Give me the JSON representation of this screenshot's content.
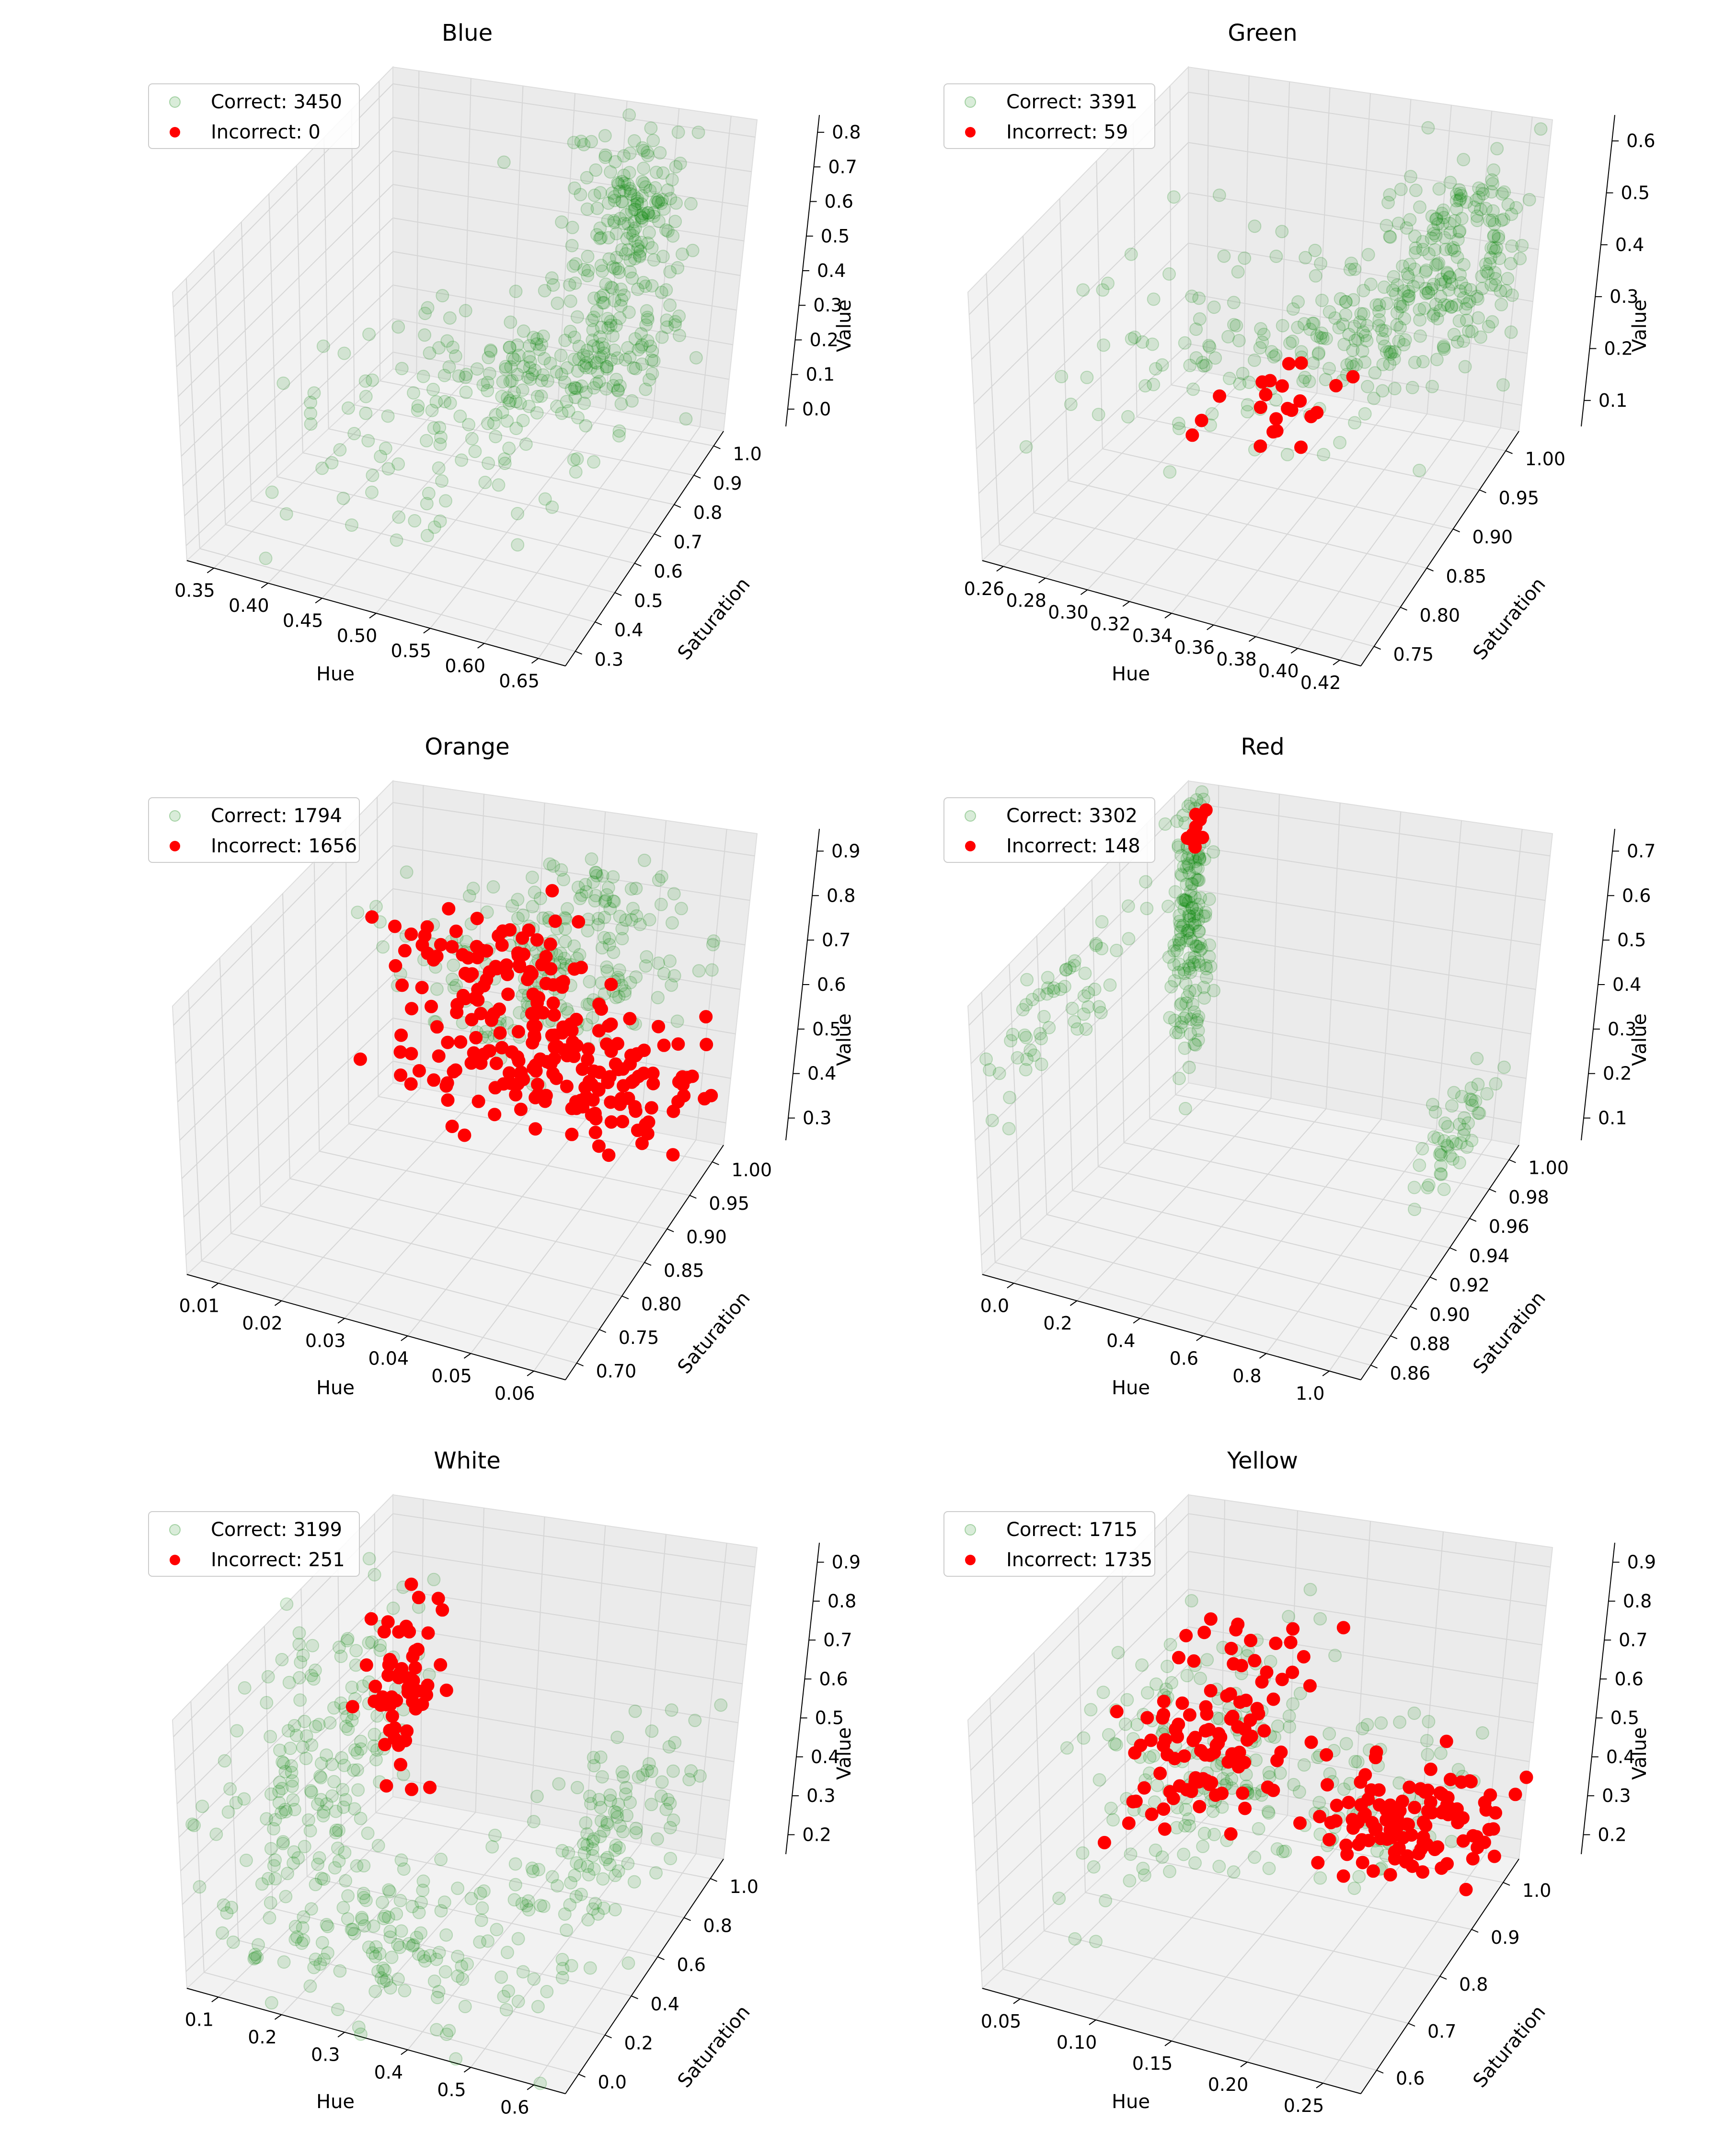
{
  "figure_title": "",
  "colors": {
    "correct": "#008000",
    "incorrect": "#ff0000",
    "pane": "#f2f2f2",
    "grid": "#d6d6d6"
  },
  "chart_data": [
    {
      "type": "scatter3d",
      "title": "Blue",
      "xlabel": "Hue",
      "ylabel": "Saturation",
      "zlabel": "Value",
      "xlim": [
        0.34,
        0.67
      ],
      "ylim": [
        0.2,
        1.05
      ],
      "zlim": [
        -0.05,
        0.85
      ],
      "xticks": [
        "0.35",
        "0.40",
        "0.45",
        "0.50",
        "0.55",
        "0.60",
        "0.65"
      ],
      "yticks": [
        "0.3",
        "0.4",
        "0.5",
        "0.6",
        "0.7",
        "0.8",
        "0.9",
        "1.0"
      ],
      "zticks": [
        "0.0",
        "0.1",
        "0.2",
        "0.3",
        "0.4",
        "0.5",
        "0.6",
        "0.7",
        "0.8"
      ],
      "legend": {
        "position": "upper left",
        "correct": "Correct: 3450",
        "incorrect": "Incorrect: 0"
      },
      "series": [
        {
          "name": "Correct: 3450",
          "clusters": [
            {
              "center": [
                0.58,
                0.95,
                0.45
              ],
              "spread": [
                0.03,
                0.04,
                0.22
              ],
              "n": 180
            },
            {
              "center": [
                0.52,
                0.85,
                0.22
              ],
              "spread": [
                0.05,
                0.08,
                0.08
              ],
              "n": 120
            },
            {
              "center": [
                0.45,
                0.7,
                0.1
              ],
              "spread": [
                0.07,
                0.15,
                0.08
              ],
              "n": 90
            },
            {
              "center": [
                0.6,
                0.9,
                0.7
              ],
              "spread": [
                0.02,
                0.04,
                0.1
              ],
              "n": 60
            }
          ]
        },
        {
          "name": "Incorrect: 0",
          "clusters": []
        }
      ]
    },
    {
      "type": "scatter3d",
      "title": "Green",
      "xlabel": "Hue",
      "ylabel": "Saturation",
      "zlabel": "Value",
      "xlim": [
        0.255,
        0.425
      ],
      "ylim": [
        0.72,
        1.03
      ],
      "zlim": [
        0.02,
        0.66
      ],
      "xticks": [
        "0.26",
        "0.28",
        "0.30",
        "0.32",
        "0.34",
        "0.36",
        "0.38",
        "0.40",
        "0.42"
      ],
      "yticks": [
        "0.75",
        "0.80",
        "0.85",
        "0.90",
        "0.95",
        "1.00"
      ],
      "zticks": [
        "0.1",
        "0.2",
        "0.3",
        "0.4",
        "0.5",
        "0.6"
      ],
      "legend": {
        "position": "upper left",
        "correct": "Correct: 3391",
        "incorrect": "Incorrect: 59"
      },
      "series": [
        {
          "name": "Correct: 3391",
          "clusters": [
            {
              "center": [
                0.4,
                0.97,
                0.45
              ],
              "spread": [
                0.015,
                0.03,
                0.1
              ],
              "n": 200
            },
            {
              "center": [
                0.36,
                0.95,
                0.28
              ],
              "spread": [
                0.02,
                0.04,
                0.05
              ],
              "n": 110
            },
            {
              "center": [
                0.3,
                0.9,
                0.3
              ],
              "spread": [
                0.03,
                0.06,
                0.08
              ],
              "n": 70
            }
          ]
        },
        {
          "name": "Incorrect: 59",
          "clusters": [
            {
              "center": [
                0.33,
                0.96,
                0.08
              ],
              "spread": [
                0.015,
                0.03,
                0.03
              ],
              "n": 22
            }
          ]
        }
      ]
    },
    {
      "type": "scatter3d",
      "title": "Orange",
      "xlabel": "Hue",
      "ylabel": "Saturation",
      "zlabel": "Value",
      "xlim": [
        0.008,
        0.065
      ],
      "ylim": [
        0.67,
        1.03
      ],
      "zlim": [
        0.22,
        0.97
      ],
      "xticks": [
        "0.01",
        "0.02",
        "0.03",
        "0.04",
        "0.05",
        "0.06"
      ],
      "yticks": [
        "0.70",
        "0.75",
        "0.80",
        "0.85",
        "0.90",
        "0.95",
        "1.00"
      ],
      "zticks": [
        "0.3",
        "0.4",
        "0.5",
        "0.6",
        "0.7",
        "0.8",
        "0.9"
      ],
      "legend": {
        "position": "upper left",
        "correct": "Correct: 1794",
        "incorrect": "Incorrect: 1656"
      },
      "series": [
        {
          "name": "Correct: 1794",
          "clusters": [
            {
              "center": [
                0.038,
                0.97,
                0.65
              ],
              "spread": [
                0.01,
                0.03,
                0.1
              ],
              "n": 190
            },
            {
              "center": [
                0.045,
                1.0,
                0.82
              ],
              "spread": [
                0.005,
                0.02,
                0.06
              ],
              "n": 40
            }
          ]
        },
        {
          "name": "Incorrect: 1656",
          "clusters": [
            {
              "center": [
                0.045,
                0.95,
                0.48
              ],
              "spread": [
                0.012,
                0.04,
                0.06
              ],
              "n": 170
            },
            {
              "center": [
                0.03,
                0.96,
                0.68
              ],
              "spread": [
                0.008,
                0.03,
                0.05
              ],
              "n": 80
            }
          ]
        }
      ]
    },
    {
      "type": "scatter3d",
      "title": "Red",
      "xlabel": "Hue",
      "ylabel": "Saturation",
      "zlabel": "Value",
      "xlim": [
        -0.05,
        1.05
      ],
      "ylim": [
        0.855,
        1.005
      ],
      "zlim": [
        0.0,
        0.78
      ],
      "xticks": [
        "0.0",
        "0.2",
        "0.4",
        "0.6",
        "0.8",
        "1.0"
      ],
      "yticks": [
        "0.86",
        "0.88",
        "0.90",
        "0.92",
        "0.94",
        "0.96",
        "0.98",
        "1.00"
      ],
      "zticks": [
        "0.1",
        "0.2",
        "0.3",
        "0.4",
        "0.5",
        "0.6",
        "0.7"
      ],
      "legend": {
        "position": "upper left",
        "correct": "Correct: 3302",
        "incorrect": "Incorrect: 148"
      },
      "series": [
        {
          "name": "Correct: 3302",
          "clusters": [
            {
              "center": [
                0.02,
                0.99,
                0.45
              ],
              "spread": [
                0.01,
                0.006,
                0.2
              ],
              "n": 160
            },
            {
              "center": [
                0.02,
                0.9,
                0.6
              ],
              "spread": [
                0.02,
                0.03,
                0.08
              ],
              "n": 60
            },
            {
              "center": [
                0.97,
                0.96,
                0.18
              ],
              "spread": [
                0.02,
                0.02,
                0.06
              ],
              "n": 50
            }
          ]
        },
        {
          "name": "Incorrect: 148",
          "clusters": [
            {
              "center": [
                0.02,
                0.995,
                0.72
              ],
              "spread": [
                0.005,
                0.003,
                0.03
              ],
              "n": 12
            }
          ]
        }
      ]
    },
    {
      "type": "scatter3d",
      "title": "White",
      "xlabel": "Hue",
      "ylabel": "Saturation",
      "zlabel": "Value",
      "xlim": [
        0.03,
        0.62
      ],
      "ylim": [
        -0.02,
        1.05
      ],
      "zlim": [
        0.15,
        0.97
      ],
      "xticks": [
        "0.1",
        "0.2",
        "0.3",
        "0.4",
        "0.5",
        "0.6"
      ],
      "yticks": [
        "0.0",
        "0.2",
        "0.4",
        "0.6",
        "0.8",
        "1.0"
      ],
      "zticks": [
        "0.2",
        "0.3",
        "0.4",
        "0.5",
        "0.6",
        "0.7",
        "0.8",
        "0.9"
      ],
      "legend": {
        "position": "upper left",
        "correct": "Correct: 3199",
        "incorrect": "Incorrect: 251"
      },
      "series": [
        {
          "name": "Correct: 3199",
          "clusters": [
            {
              "center": [
                0.08,
                0.55,
                0.55
              ],
              "spread": [
                0.03,
                0.25,
                0.2
              ],
              "n": 170
            },
            {
              "center": [
                0.3,
                0.2,
                0.3
              ],
              "spread": [
                0.12,
                0.15,
                0.08
              ],
              "n": 140
            },
            {
              "center": [
                0.55,
                0.5,
                0.5
              ],
              "spread": [
                0.04,
                0.2,
                0.12
              ],
              "n": 120
            }
          ]
        },
        {
          "name": "Incorrect: 251",
          "clusters": [
            {
              "center": [
                0.1,
                0.9,
                0.55
              ],
              "spread": [
                0.02,
                0.06,
                0.12
              ],
              "n": 60
            }
          ]
        }
      ]
    },
    {
      "type": "scatter3d",
      "title": "Yellow",
      "xlabel": "Hue",
      "ylabel": "Saturation",
      "zlabel": "Value",
      "xlim": [
        0.035,
        0.275
      ],
      "ylim": [
        0.57,
        1.05
      ],
      "zlim": [
        0.15,
        0.96
      ],
      "xticks": [
        "0.05",
        "0.10",
        "0.15",
        "0.20",
        "0.25"
      ],
      "yticks": [
        "0.6",
        "0.7",
        "0.8",
        "0.9",
        "1.0"
      ],
      "zticks": [
        "0.2",
        "0.3",
        "0.4",
        "0.5",
        "0.6",
        "0.7",
        "0.8",
        "0.9"
      ],
      "legend": {
        "position": "upper left",
        "correct": "Correct: 1715",
        "incorrect": "Incorrect: 1735"
      },
      "series": [
        {
          "name": "Correct: 1715",
          "clusters": [
            {
              "center": [
                0.1,
                0.85,
                0.55
              ],
              "spread": [
                0.03,
                0.1,
                0.15
              ],
              "n": 150
            },
            {
              "center": [
                0.18,
                0.9,
                0.42
              ],
              "spread": [
                0.04,
                0.08,
                0.06
              ],
              "n": 90
            }
          ]
        },
        {
          "name": "Incorrect: 1735",
          "clusters": [
            {
              "center": [
                0.1,
                0.9,
                0.55
              ],
              "spread": [
                0.02,
                0.08,
                0.1
              ],
              "n": 110
            },
            {
              "center": [
                0.22,
                0.95,
                0.35
              ],
              "spread": [
                0.03,
                0.04,
                0.05
              ],
              "n": 120
            }
          ]
        }
      ]
    }
  ]
}
